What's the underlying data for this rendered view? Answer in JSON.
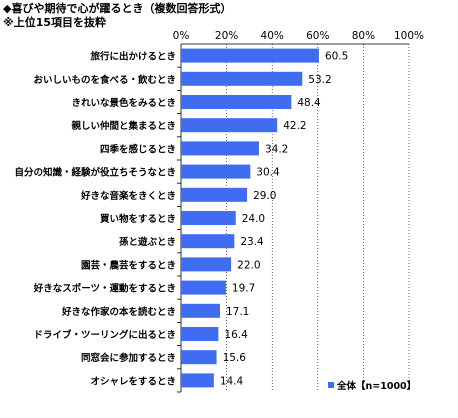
{
  "title": "◆喜びや期待で心が躍るとき（複数回答形式）",
  "subtitle": "※上位15項目を抜粋",
  "colors": {
    "bar": "#3f6cf0",
    "axis": "#000000",
    "grid": "#000000"
  },
  "chart_data": {
    "type": "bar",
    "orientation": "horizontal",
    "categories": [
      "旅行に出かけるとき",
      "おいしいものを食べる・飲むとき",
      "きれいな景色をみるとき",
      "親しい仲間と集まるとき",
      "四季を感じるとき",
      "自分の知識・経験が役立ちそうなとき",
      "好きな音楽をきくとき",
      "買い物をするとき",
      "孫と遊ぶとき",
      "園芸・農芸をするとき",
      "好きなスポーツ・運動をするとき",
      "好きな作家の本を読むとき",
      "ドライブ・ツーリングに出るとき",
      "同窓会に参加するとき",
      "オシャレをするとき"
    ],
    "series": [
      {
        "name": "全体【n=1000】",
        "values": [
          60.5,
          53.2,
          48.4,
          42.2,
          34.2,
          30.4,
          29.0,
          24.0,
          23.4,
          22.0,
          19.7,
          17.1,
          16.4,
          15.6,
          14.4
        ]
      }
    ],
    "value_labels": [
      "60.5",
      "53.2",
      "48.4",
      "42.2",
      "34.2",
      "30.4",
      "29.0",
      "24.0",
      "23.4",
      "22.0",
      "19.7",
      "17.1",
      "16.4",
      "15.6",
      "14.4"
    ],
    "xlim": [
      0,
      100
    ],
    "xticks": [
      "0%",
      "20%",
      "40%",
      "60%",
      "80%",
      "100%"
    ],
    "grid": "vertical dotted",
    "legend_position": "bottom-right"
  }
}
